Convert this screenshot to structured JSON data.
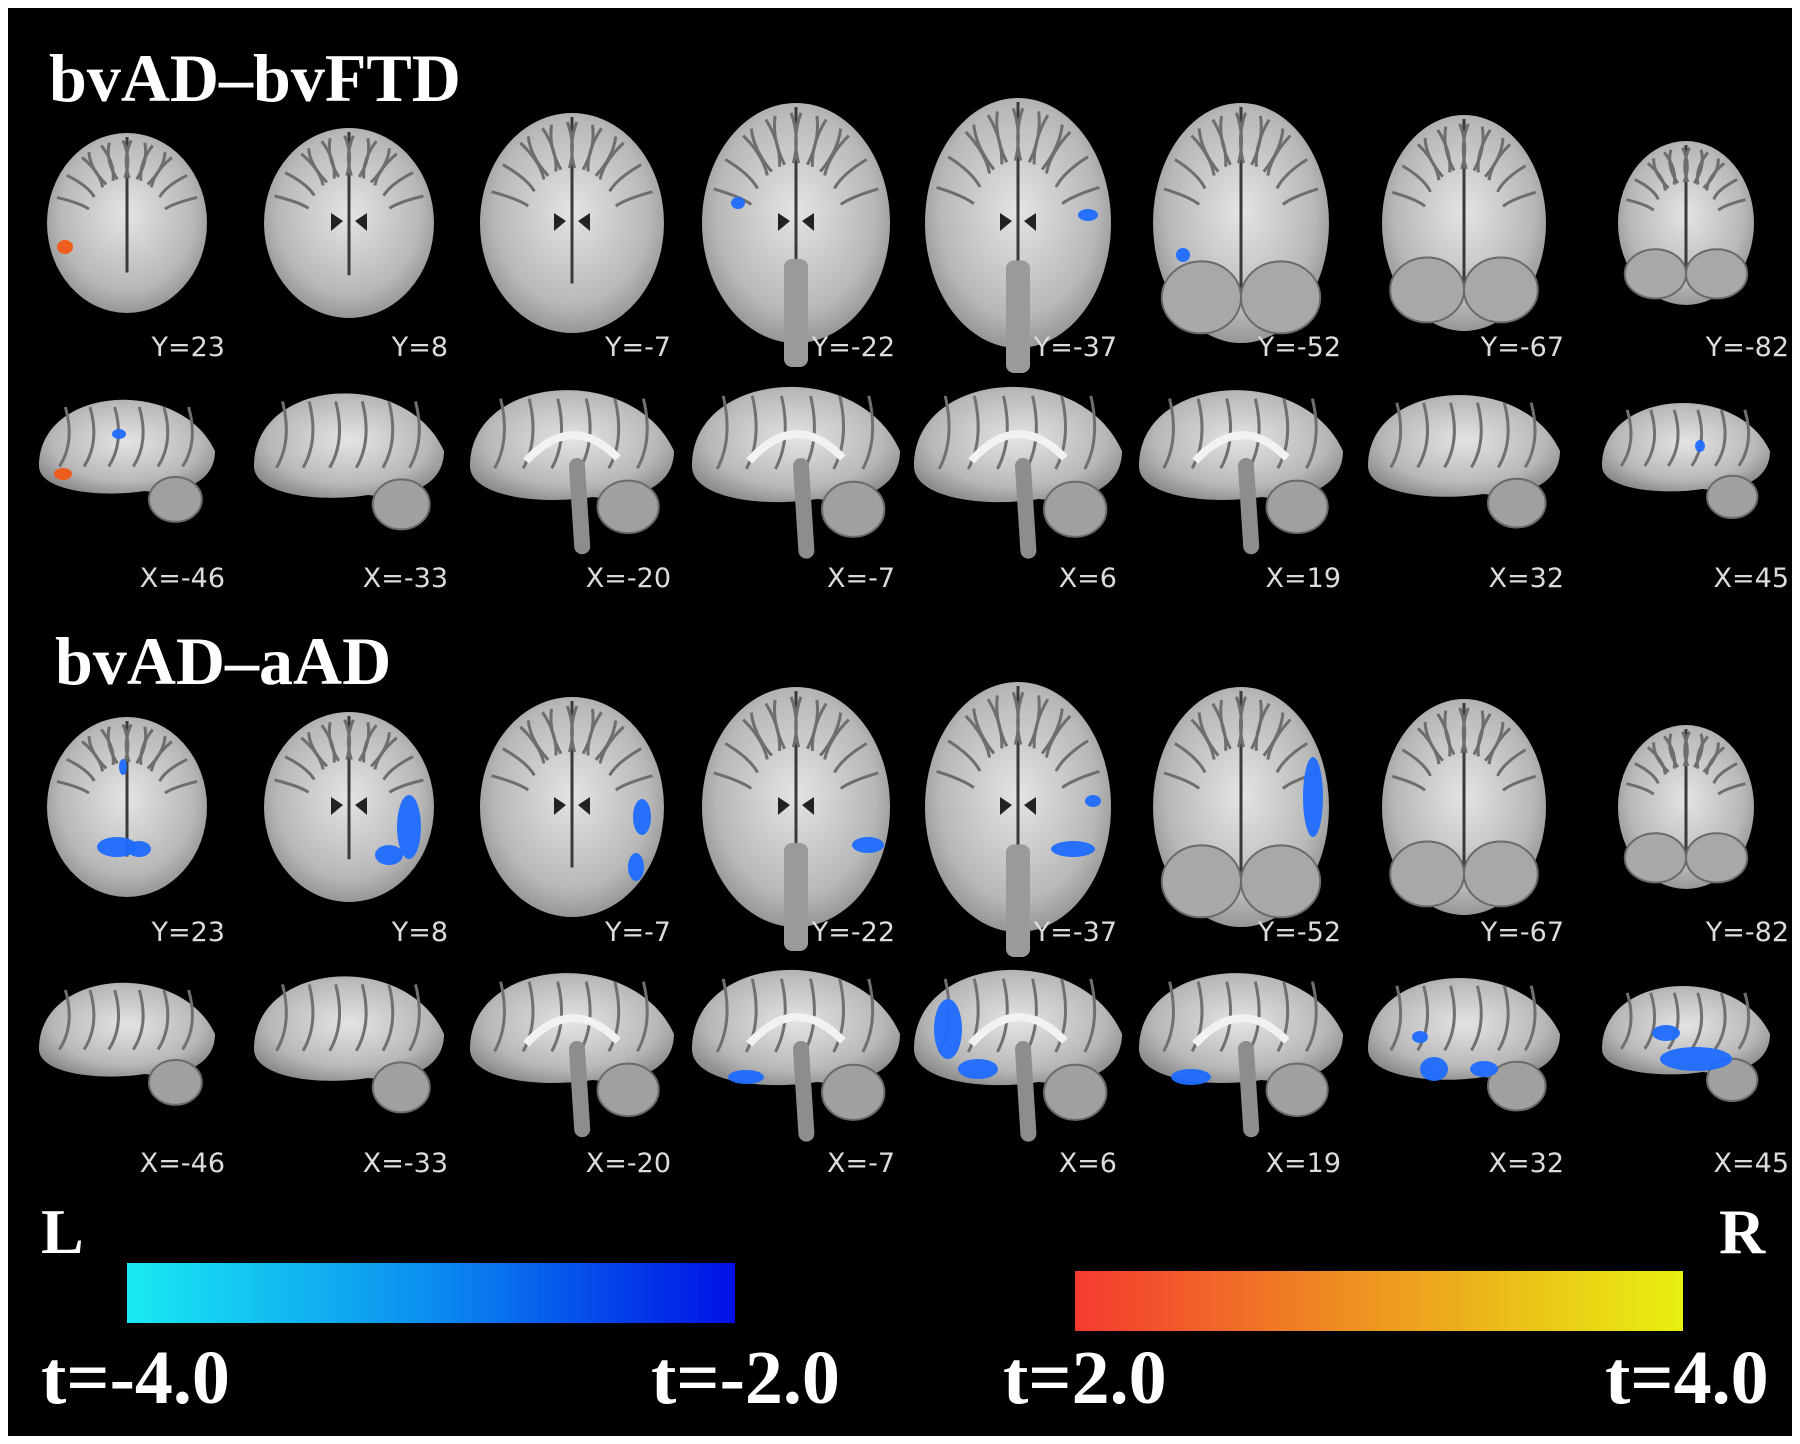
{
  "panels": [
    {
      "title": "bvAD–bvFTD",
      "coronal_labels": [
        "Y=23",
        "Y=8",
        "Y=-7",
        "Y=-22",
        "Y=-37",
        "Y=-52",
        "Y=-67",
        "Y=-82"
      ],
      "sagittal_labels": [
        "X=-46",
        "X=-33",
        "X=-20",
        "X=-7",
        "X=6",
        "X=19",
        "X=32",
        "X=45"
      ]
    },
    {
      "title": "bvAD–aAD",
      "coronal_labels": [
        "Y=23",
        "Y=8",
        "Y=-7",
        "Y=-22",
        "Y=-37",
        "Y=-52",
        "Y=-67",
        "Y=-82"
      ],
      "sagittal_labels": [
        "X=-46",
        "X=-33",
        "X=-20",
        "X=-7",
        "X=6",
        "X=19",
        "X=32",
        "X=45"
      ]
    }
  ],
  "orientation": {
    "left": "L",
    "right": "R"
  },
  "colorbars": {
    "negative": {
      "min_label": "t=-4.0",
      "max_label": "t=-2.0",
      "color_from": "#19eaf2",
      "color_to": "#0010e6"
    },
    "positive": {
      "min_label": "t=2.0",
      "max_label": "t=4.0",
      "color_from": "#f43a30",
      "color_to": "#e8f010"
    }
  },
  "colors": {
    "background": "#000000",
    "brain": "#bdbdbd",
    "activation_negative": "#1e6cff",
    "activation_positive": "#f05a14"
  }
}
